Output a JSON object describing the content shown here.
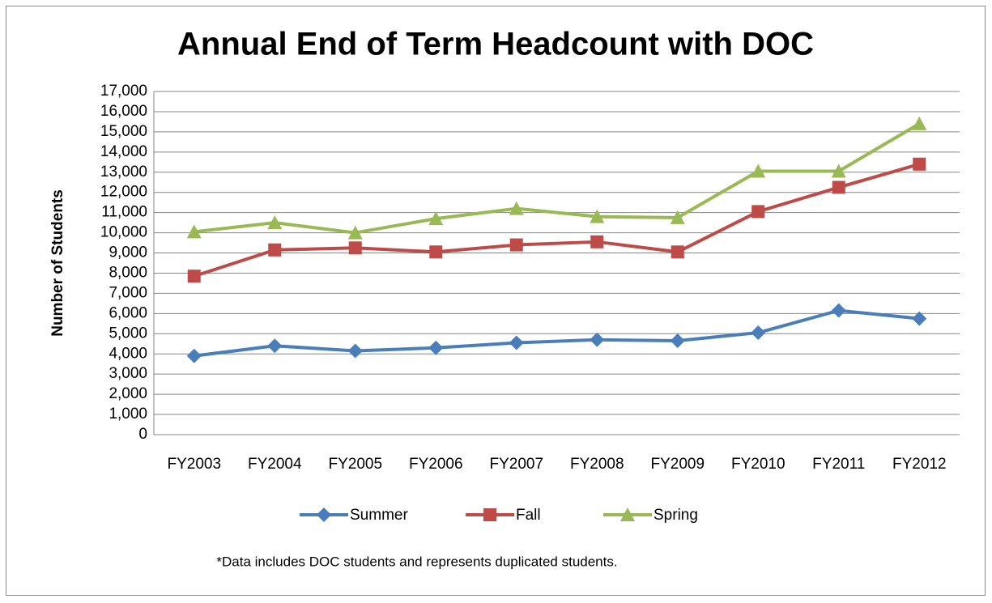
{
  "chart_data": {
    "type": "line",
    "title": "Annual End of Term Headcount with DOC",
    "y_label": "Number of Students",
    "note": "*Data includes DOC students and represents duplicated students.",
    "categories": [
      "FY2003",
      "FY2004",
      "FY2005",
      "FY2006",
      "FY2007",
      "FY2008",
      "FY2009",
      "FY2010",
      "FY2011",
      "FY2012"
    ],
    "series": [
      {
        "name": "Summer",
        "color": "#4a7ebb",
        "marker": "diamond",
        "values": [
          3900,
          4400,
          4150,
          4300,
          4550,
          4700,
          4650,
          5050,
          6150,
          5750
        ]
      },
      {
        "name": "Fall",
        "color": "#be4b48",
        "marker": "square",
        "values": [
          7850,
          9150,
          9250,
          9050,
          9400,
          9550,
          9050,
          11050,
          12250,
          13400
        ]
      },
      {
        "name": "Spring",
        "color": "#98b954",
        "marker": "triangle",
        "values": [
          10050,
          10500,
          10000,
          10700,
          11200,
          10800,
          10750,
          13050,
          13050,
          15400
        ]
      }
    ],
    "ylim": [
      0,
      17000
    ],
    "yticks": [
      0,
      {
        "value": 1000,
        "label": "1,000"
      },
      {
        "value": 2000,
        "label": "2,000"
      },
      {
        "value": 3000,
        "label": "3,000"
      },
      {
        "value": 4000,
        "label": "4,000"
      },
      {
        "value": 5000,
        "label": "5,000"
      },
      {
        "value": 6000,
        "label": "6,000"
      },
      {
        "value": 7000,
        "label": "7,000"
      },
      {
        "value": 8000,
        "label": "8,000"
      },
      {
        "value": 9000,
        "label": "9,000"
      },
      {
        "value": 10000,
        "label": "10,000"
      },
      {
        "value": 11000,
        "label": "11,000"
      },
      {
        "value": 12000,
        "label": "12,000"
      },
      {
        "value": 13000,
        "label": "13,000"
      },
      {
        "value": 14000,
        "label": "14,000"
      },
      {
        "value": 15000,
        "label": "15,000"
      },
      {
        "value": 16000,
        "label": "16,000"
      },
      {
        "value": 17000,
        "label": "17,000"
      }
    ],
    "grid": true,
    "legend": "bottom"
  }
}
